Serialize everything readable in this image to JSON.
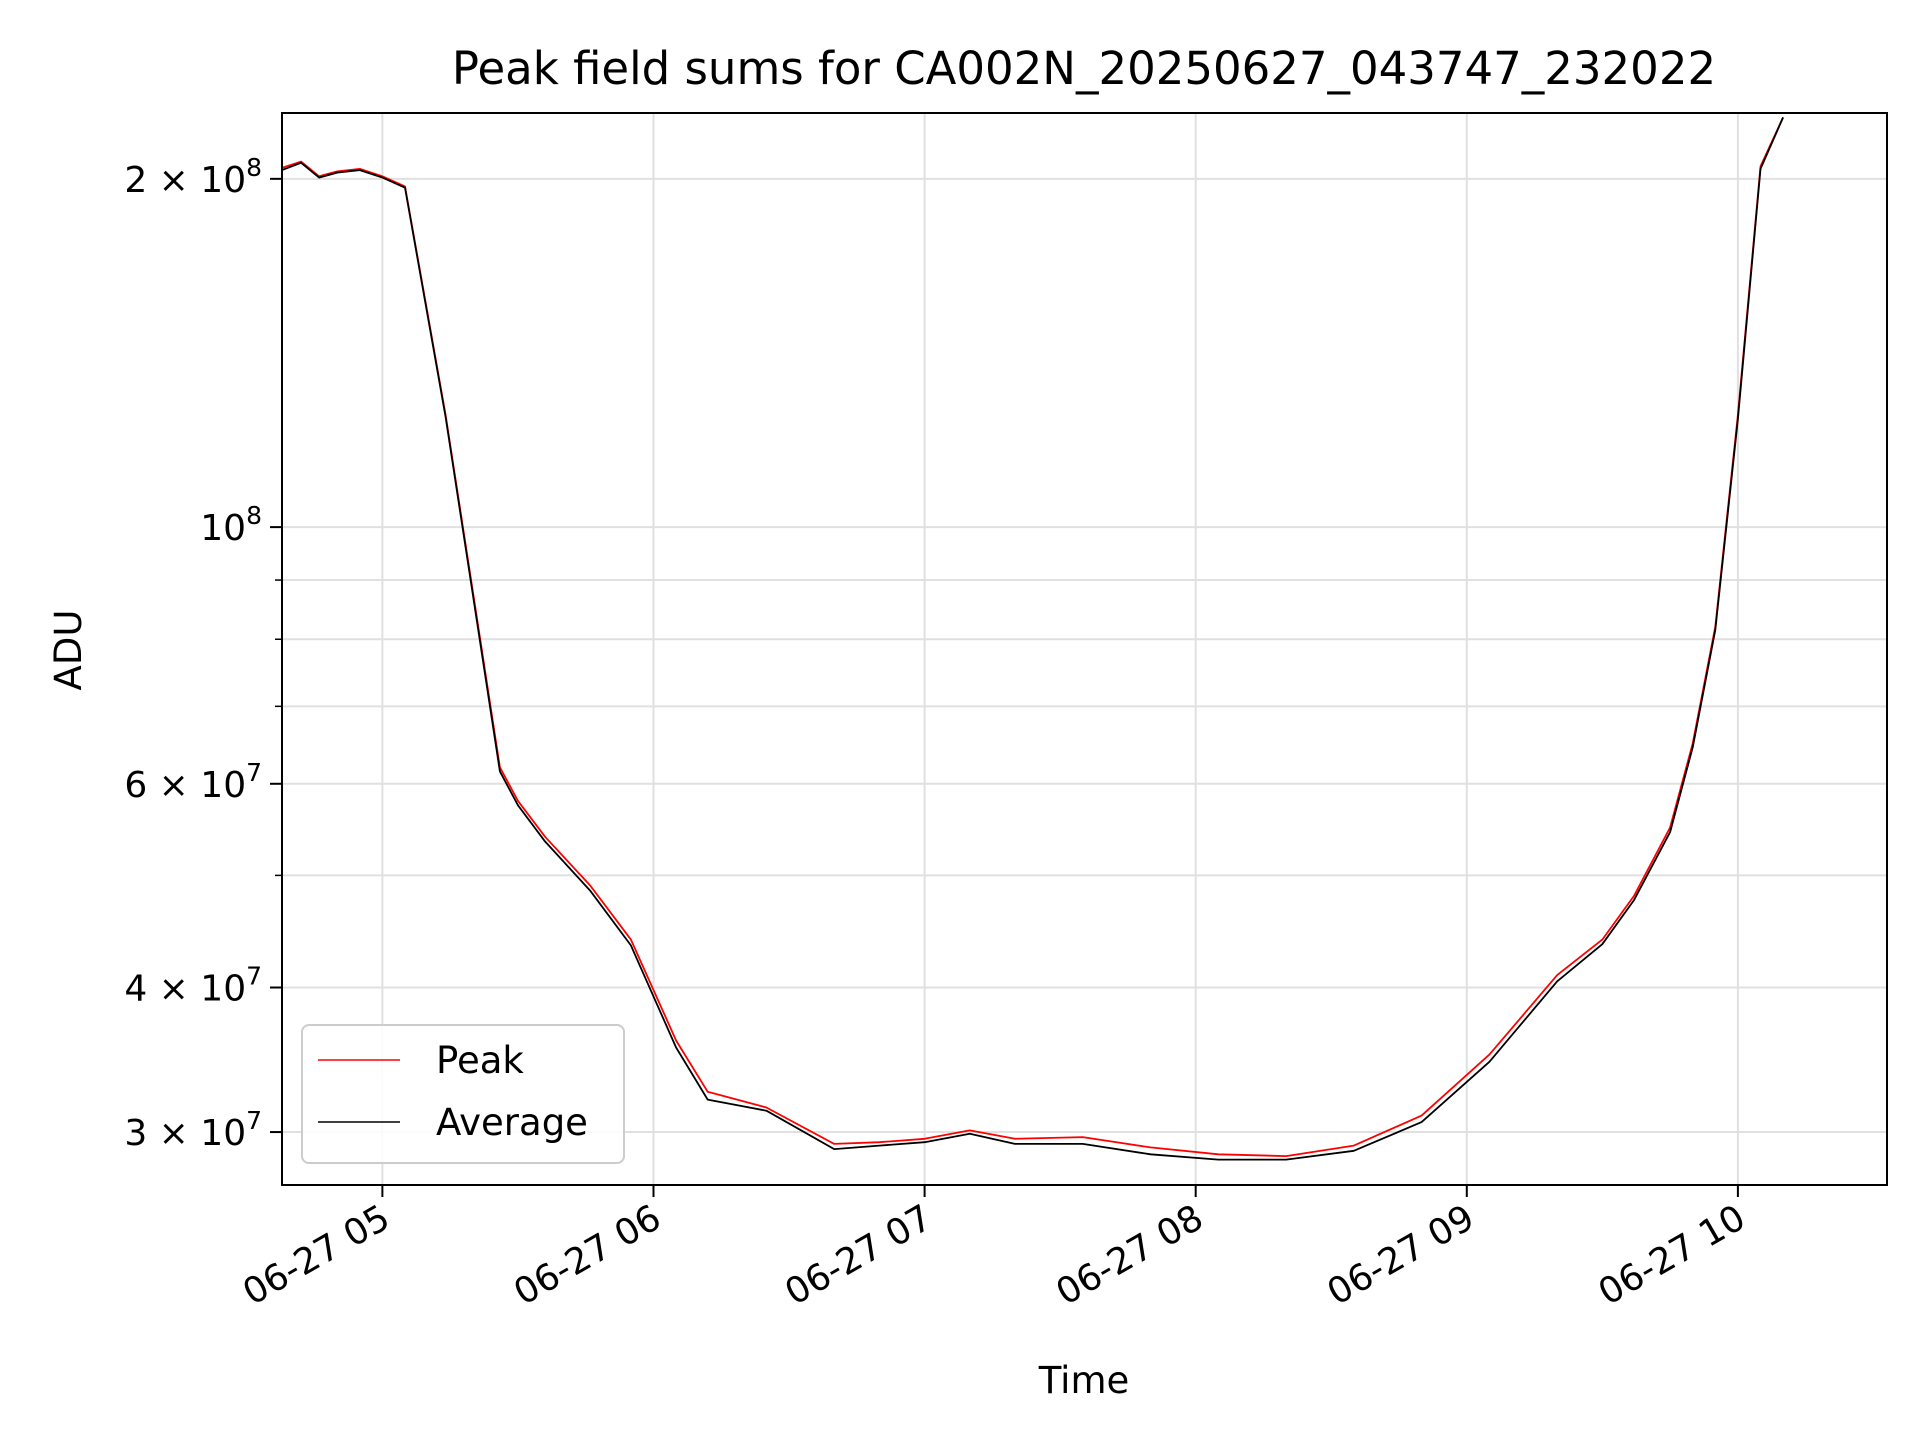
{
  "chart_data": {
    "type": "line",
    "title": "Peak field sums for CA002N_20250627_043747_232022",
    "xlabel": "Time",
    "ylabel": "ADU",
    "xlim": [
      "2025-06-27 04:37:47",
      "2025-06-27 10:33:00"
    ],
    "ylim": [
      27000000,
      228000000
    ],
    "yscale": "log",
    "grid": true,
    "legend_position": "lower-left",
    "x_ticks": [
      "2025-06-27 05:00",
      "2025-06-27 06:00",
      "2025-06-27 07:00",
      "2025-06-27 08:00",
      "2025-06-27 09:00",
      "2025-06-27 10:00"
    ],
    "x_tick_labels": [
      "06-27 05",
      "06-27 06",
      "06-27 07",
      "06-27 08",
      "06-27 09",
      "06-27 10"
    ],
    "y_ticks": [
      30000000,
      40000000,
      60000000,
      100000000,
      200000000
    ],
    "y_tick_labels": [
      {
        "mantissa": "3",
        "exp": "7"
      },
      {
        "mantissa": "4",
        "exp": "7"
      },
      {
        "mantissa": "6",
        "exp": "7"
      },
      {
        "mantissa": "",
        "exp": "8"
      },
      {
        "mantissa": "2",
        "exp": "8"
      }
    ],
    "x": [
      "2025-06-27 04:37",
      "2025-06-27 04:42",
      "2025-06-27 04:46",
      "2025-06-27 04:50",
      "2025-06-27 04:55",
      "2025-06-27 05:00",
      "2025-06-27 05:05",
      "2025-06-27 05:14",
      "2025-06-27 05:20",
      "2025-06-27 05:26",
      "2025-06-27 05:30",
      "2025-06-27 05:36",
      "2025-06-27 05:46",
      "2025-06-27 05:55",
      "2025-06-27 06:05",
      "2025-06-27 06:12",
      "2025-06-27 06:25",
      "2025-06-27 06:40",
      "2025-06-27 06:50",
      "2025-06-27 07:00",
      "2025-06-27 07:10",
      "2025-06-27 07:20",
      "2025-06-27 07:35",
      "2025-06-27 07:50",
      "2025-06-27 08:05",
      "2025-06-27 08:20",
      "2025-06-27 08:35",
      "2025-06-27 08:50",
      "2025-06-27 09:05",
      "2025-06-27 09:20",
      "2025-06-27 09:30",
      "2025-06-27 09:37",
      "2025-06-27 09:45",
      "2025-06-27 09:50",
      "2025-06-27 09:55",
      "2025-06-27 10:00",
      "2025-06-27 10:05",
      "2025-06-27 10:10"
    ],
    "series": [
      {
        "name": "Peak",
        "color": "#ff0000",
        "values": [
          204000000,
          207000000,
          201000000,
          203000000,
          204000000,
          201000000,
          197000000,
          125000000,
          88000000,
          62000000,
          58000000,
          54000000,
          49000000,
          44000000,
          36000000,
          32500000,
          31500000,
          29300000,
          29400000,
          29600000,
          30100000,
          29600000,
          29700000,
          29100000,
          28700000,
          28600000,
          29200000,
          31000000,
          35000000,
          41000000,
          44000000,
          48000000,
          55000000,
          65000000,
          82000000,
          125000000,
          205000000,
          226000000
        ]
      },
      {
        "name": "Average",
        "color": "#000000",
        "values": [
          203000000,
          206500000,
          200500000,
          202500000,
          203500000,
          200500000,
          196500000,
          124500000,
          87500000,
          61500000,
          57500000,
          53500000,
          48500000,
          43500000,
          35500000,
          32000000,
          31300000,
          29000000,
          29200000,
          29400000,
          29900000,
          29300000,
          29300000,
          28700000,
          28400000,
          28400000,
          28900000,
          30600000,
          34500000,
          40500000,
          43600000,
          47600000,
          54500000,
          64500000,
          81500000,
          124000000,
          204000000,
          226000000
        ]
      }
    ]
  }
}
